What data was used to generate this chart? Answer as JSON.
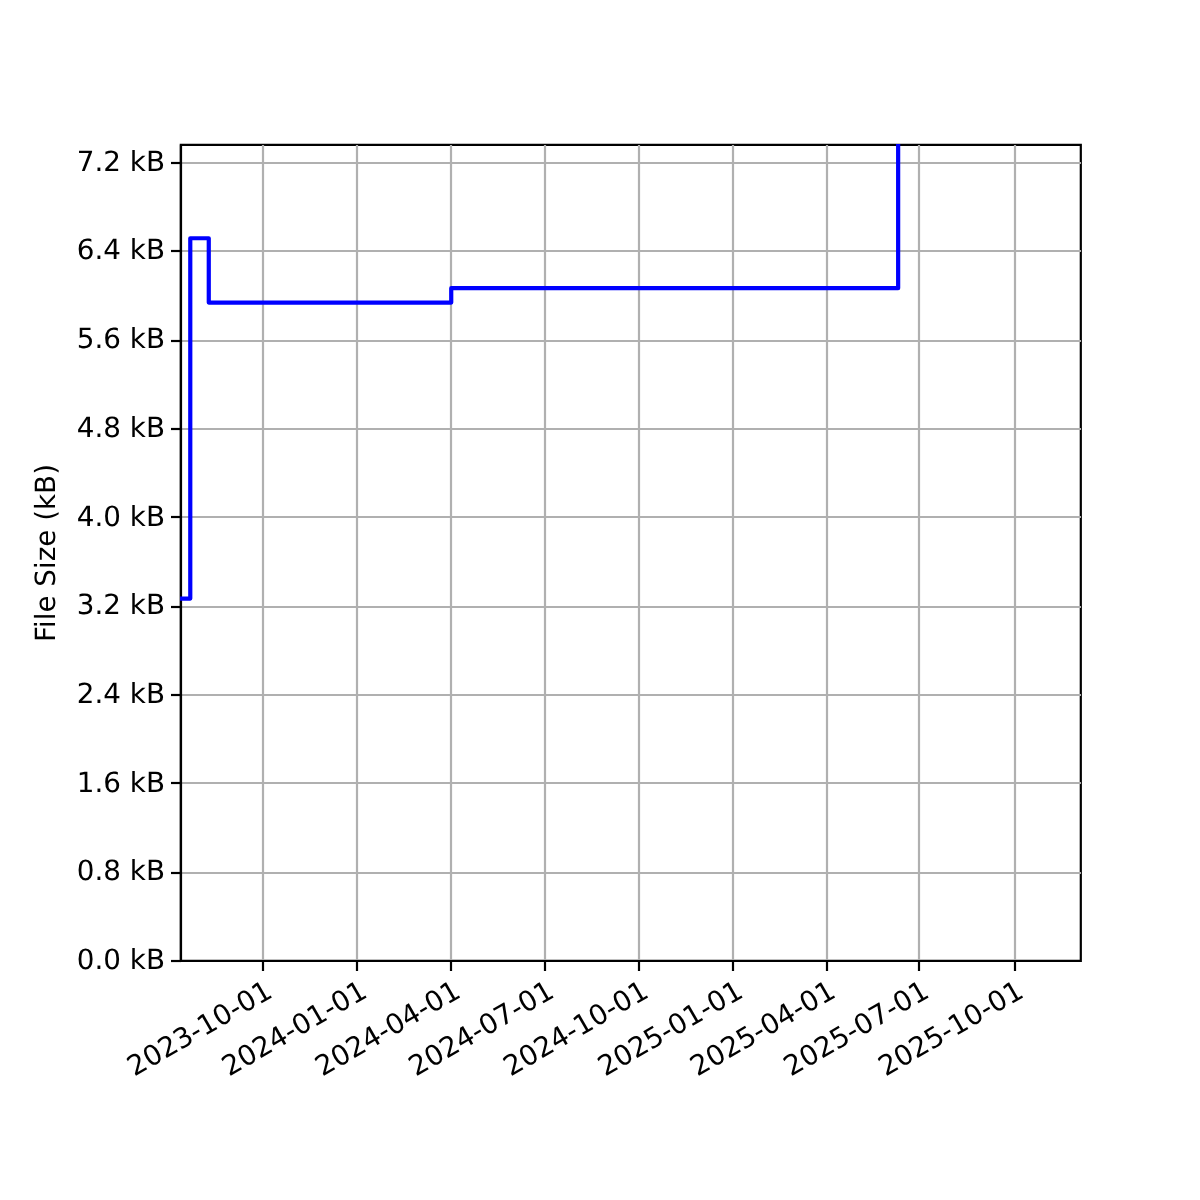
{
  "chart_data": {
    "type": "step",
    "ylabel": "File Size (kB)",
    "x": [
      "2023-07-13",
      "2023-07-23",
      "2023-08-10",
      "2024-04-02",
      "2025-06-11"
    ],
    "series": [
      {
        "color": "#0000ff",
        "values": [
          3.26,
          6.51,
          5.93,
          6.06,
          7.36
        ]
      }
    ],
    "xlim": [
      "2023-07-13",
      "2025-12-05"
    ],
    "xticks": [
      "2023-10-01",
      "2024-01-01",
      "2024-04-01",
      "2024-07-01",
      "2024-10-01",
      "2025-01-01",
      "2025-04-01",
      "2025-07-01",
      "2025-10-01"
    ],
    "ylim": [
      0,
      7.36
    ],
    "yticks": [
      {
        "value": 0,
        "label": "0.0 kB"
      },
      {
        "value": 0.8,
        "label": "0.8 kB"
      },
      {
        "value": 1.6,
        "label": "1.6 kB"
      },
      {
        "value": 2.4,
        "label": "2.4 kB"
      },
      {
        "value": 3.2,
        "label": "3.2 kB"
      },
      {
        "value": 4.0,
        "label": "4.0 kB"
      },
      {
        "value": 4.8,
        "label": "4.8 kB"
      },
      {
        "value": 5.6,
        "label": "5.6 kB"
      },
      {
        "value": 6.4,
        "label": "6.4 kB"
      },
      {
        "value": 7.2,
        "label": "7.2 kB"
      }
    ],
    "grid": true
  }
}
